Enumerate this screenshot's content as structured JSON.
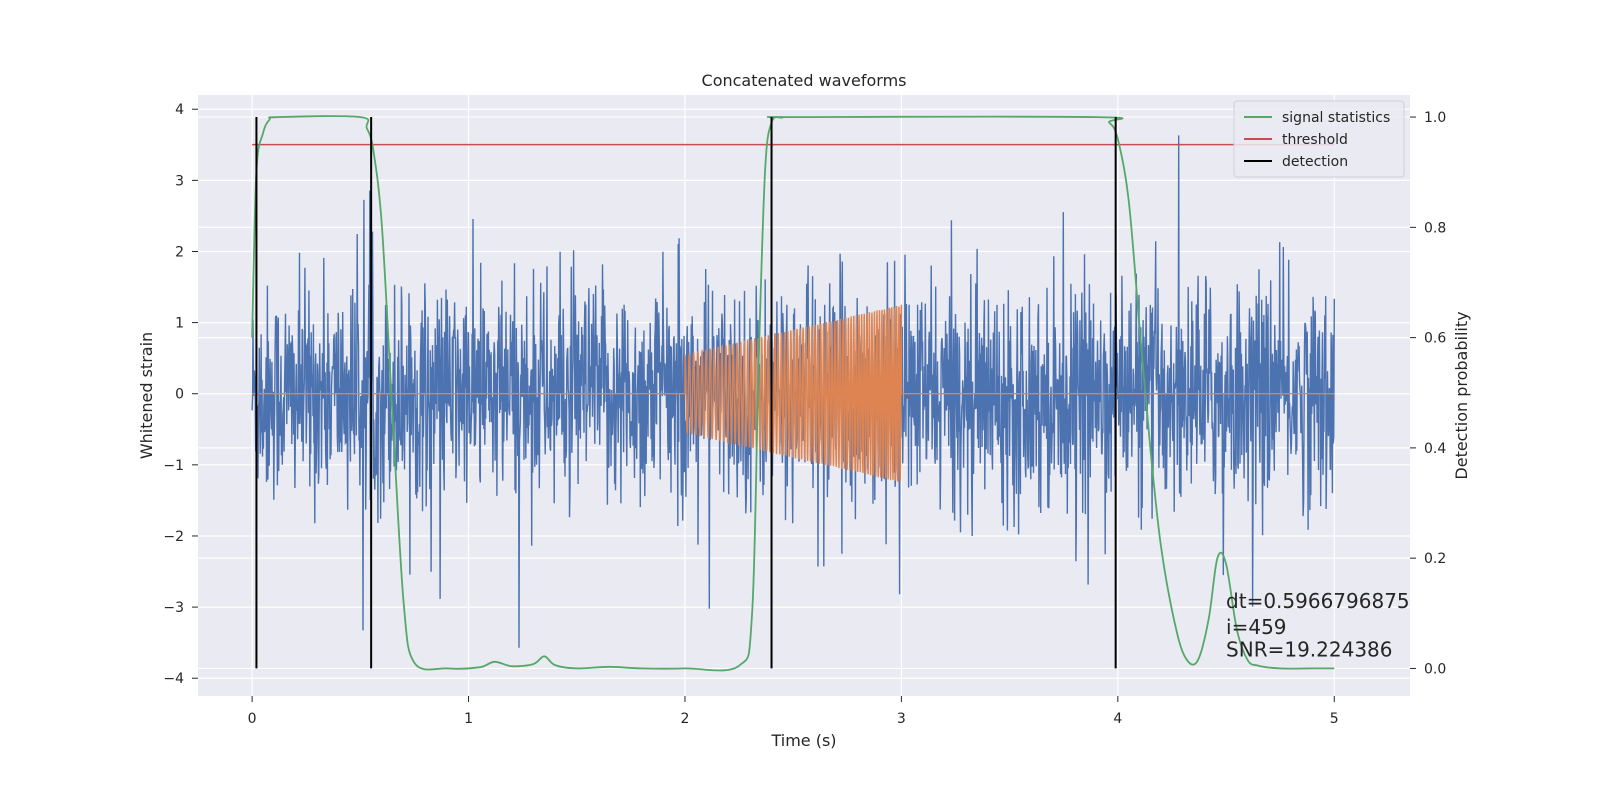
{
  "chart_data": {
    "type": "line",
    "title": "Concatenated waveforms",
    "xlabel": "Time (s)",
    "ylabel": "Whitened strain",
    "y2label": "Detection probability",
    "xlim": [
      -0.25,
      5.35
    ],
    "ylim": [
      -4.25,
      4.2
    ],
    "y2lim": [
      -0.05,
      1.04
    ],
    "xticks": [
      0,
      1,
      2,
      3,
      4,
      5
    ],
    "yticks": [
      -4,
      -3,
      -2,
      -1,
      0,
      1,
      2,
      3,
      4
    ],
    "y2ticks": [
      0.0,
      0.2,
      0.4,
      0.6,
      0.8,
      1.0
    ],
    "y2ticklabels": [
      "0.0",
      "0.2",
      "0.4",
      "0.6",
      "0.8",
      "1.0"
    ],
    "grid": true,
    "legend_position": "top-right",
    "series": [
      {
        "key": "noise",
        "axis": "left",
        "color": "#4c72b0",
        "x_range": [
          0,
          5
        ],
        "amplitude_rms": 0.75,
        "peak_range": [
          -3.9,
          3.8
        ]
      },
      {
        "key": "injected",
        "axis": "left",
        "color": "#dd8452",
        "x_range": [
          0,
          5
        ],
        "chirp_start": 2.0,
        "chirp_end": 3.0,
        "amplitude_start": 0.55,
        "amplitude_end": 1.25,
        "cycles": 70
      },
      {
        "name": "signal statistics",
        "axis": "right",
        "color": "#55a868",
        "x": [
          0.0,
          0.02,
          0.05,
          0.08,
          0.12,
          0.5,
          0.53,
          0.56,
          0.6,
          0.65,
          0.7,
          0.75,
          0.9,
          1.05,
          1.12,
          1.2,
          1.3,
          1.35,
          1.4,
          1.5,
          1.65,
          1.8,
          2.0,
          2.25,
          2.31,
          2.34,
          2.37,
          2.4,
          2.45,
          2.5,
          3.9,
          3.96,
          4.0,
          4.05,
          4.1,
          4.15,
          4.2,
          4.27,
          4.32,
          4.37,
          4.42,
          4.46,
          4.5,
          4.55,
          4.6,
          4.65,
          4.75,
          4.9,
          5.0
        ],
        "values": [
          0.6,
          0.9,
          0.97,
          0.995,
          1.0,
          1.0,
          0.98,
          0.94,
          0.8,
          0.45,
          0.12,
          0.01,
          0.0,
          0.002,
          0.012,
          0.004,
          0.008,
          0.022,
          0.006,
          0.0,
          0.003,
          0.0,
          0.0,
          0.005,
          0.1,
          0.55,
          0.9,
          0.99,
          0.999,
          1.0,
          1.0,
          0.99,
          0.96,
          0.85,
          0.62,
          0.4,
          0.22,
          0.07,
          0.015,
          0.015,
          0.09,
          0.2,
          0.19,
          0.07,
          0.015,
          0.005,
          0.0,
          0.0,
          0.0
        ]
      },
      {
        "name": "threshold",
        "axis": "right",
        "color": "#c44e52",
        "x": [
          0,
          5
        ],
        "values": [
          0.95,
          0.95
        ]
      },
      {
        "name": "detection",
        "axis": "right",
        "color": "#000000",
        "type": "vlines",
        "x": [
          0.02,
          0.55,
          2.4,
          3.99
        ],
        "ymin": 0.0,
        "ymax": 1.0
      }
    ],
    "annotations": [
      {
        "text": "dt=0.5966796875",
        "x": 4.5,
        "y": 0.11
      },
      {
        "text": " i=459",
        "x": 4.5,
        "y": 0.062
      },
      {
        "text": "SNR=19.224386",
        "x": 4.5,
        "y": 0.022
      }
    ]
  }
}
